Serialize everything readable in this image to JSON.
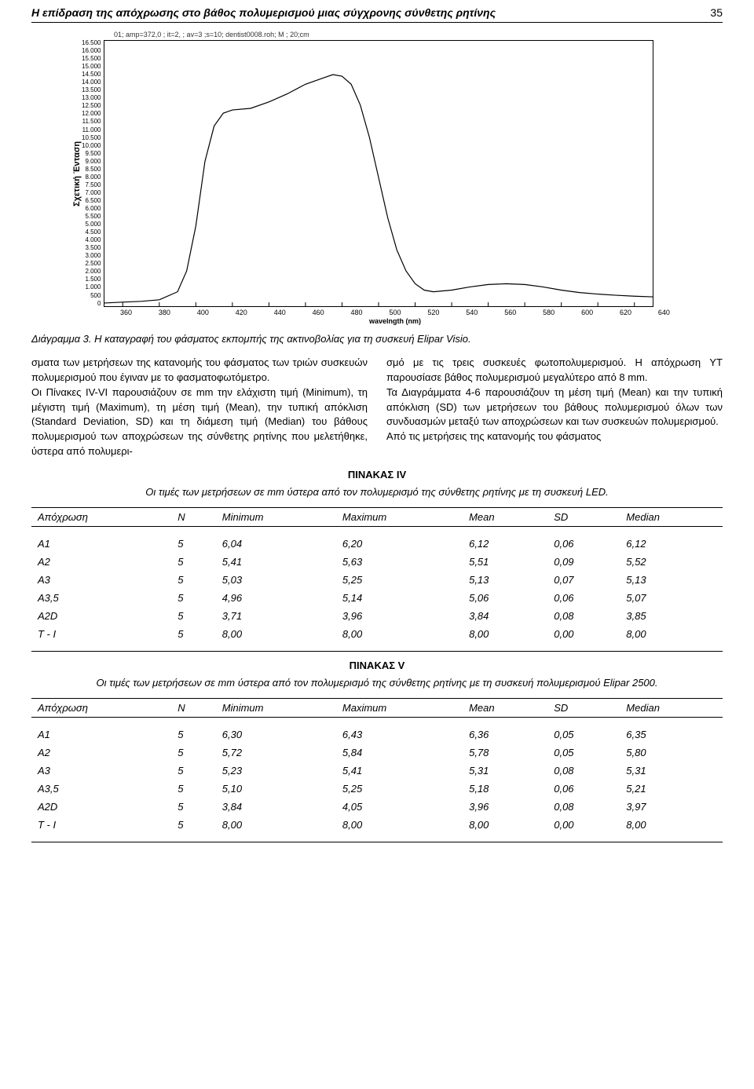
{
  "header": {
    "title": "Η επίδραση της απόχρωσης στο βάθος πολυμερισμού μιας σύγχρονης σύνθετης ρητίνης",
    "page_number": "35"
  },
  "chart": {
    "type": "line",
    "meta": "01; amp=372,0 ; it=2, ; av=3 ;s=10; dentist0008.roh; M ; 20;cm",
    "y_label": "Σχετική Ένταση",
    "x_label": "wavelngth (nm)",
    "y_ticks": [
      "16.500",
      "16.000",
      "15.500",
      "15.000",
      "14.500",
      "14.000",
      "13.500",
      "13.000",
      "12.500",
      "12.000",
      "11.500",
      "11.000",
      "10.500",
      "10.000",
      "9.500",
      "9.000",
      "8.500",
      "8.000",
      "7.500",
      "7.000",
      "6.500",
      "6.000",
      "5.500",
      "5.000",
      "4.500",
      "4.000",
      "3.500",
      "3.000",
      "2.500",
      "2.000",
      "1.500",
      "1.000",
      "500",
      "0"
    ],
    "x_ticks": [
      "360",
      "380",
      "400",
      "420",
      "440",
      "460",
      "480",
      "500",
      "520",
      "540",
      "560",
      "580",
      "600",
      "620",
      "640"
    ],
    "xlim": [
      350,
      650
    ],
    "ylim": [
      0,
      16500
    ],
    "background_color": "#ffffff",
    "line_color": "#000000",
    "border_color": "#000000",
    "line_width": 1.2,
    "series": [
      {
        "x": 350,
        "y": 200
      },
      {
        "x": 360,
        "y": 250
      },
      {
        "x": 370,
        "y": 300
      },
      {
        "x": 380,
        "y": 400
      },
      {
        "x": 390,
        "y": 900
      },
      {
        "x": 395,
        "y": 2200
      },
      {
        "x": 400,
        "y": 5000
      },
      {
        "x": 405,
        "y": 9000
      },
      {
        "x": 410,
        "y": 11200
      },
      {
        "x": 415,
        "y": 12000
      },
      {
        "x": 420,
        "y": 12200
      },
      {
        "x": 430,
        "y": 12300
      },
      {
        "x": 440,
        "y": 12700
      },
      {
        "x": 450,
        "y": 13200
      },
      {
        "x": 460,
        "y": 13800
      },
      {
        "x": 470,
        "y": 14200
      },
      {
        "x": 475,
        "y": 14400
      },
      {
        "x": 480,
        "y": 14300
      },
      {
        "x": 485,
        "y": 13800
      },
      {
        "x": 490,
        "y": 12500
      },
      {
        "x": 495,
        "y": 10500
      },
      {
        "x": 500,
        "y": 8000
      },
      {
        "x": 505,
        "y": 5500
      },
      {
        "x": 510,
        "y": 3500
      },
      {
        "x": 515,
        "y": 2200
      },
      {
        "x": 520,
        "y": 1400
      },
      {
        "x": 525,
        "y": 1000
      },
      {
        "x": 530,
        "y": 900
      },
      {
        "x": 540,
        "y": 1000
      },
      {
        "x": 550,
        "y": 1200
      },
      {
        "x": 560,
        "y": 1350
      },
      {
        "x": 570,
        "y": 1400
      },
      {
        "x": 580,
        "y": 1350
      },
      {
        "x": 590,
        "y": 1200
      },
      {
        "x": 600,
        "y": 1000
      },
      {
        "x": 610,
        "y": 850
      },
      {
        "x": 620,
        "y": 750
      },
      {
        "x": 630,
        "y": 680
      },
      {
        "x": 640,
        "y": 620
      },
      {
        "x": 650,
        "y": 580
      }
    ]
  },
  "diagram_caption": "Διάγραμμα 3. Η καταγραφή του φάσματος εκπομπής της ακτινοβολίας για τη συσκευή Elipar Visio.",
  "body": {
    "col1_p1": "σματα των μετρήσεων της κατανομής του φάσματος των τριών συσκευών πολυμερισμού που έγιναν με το φασματοφωτόμετρο.",
    "col1_p2": "Οι Πίνακες IV-VI παρουσιάζουν σε mm την ελάχιστη τιμή (Minimum), τη μέγιστη τιμή (Maximum), τη μέση τιμή (Mean), την τυπική απόκλιση (Standard Deviation, SD) και τη διάμεση τιμή (Median) του βάθους πολυμερισμού των αποχρώσεων της σύνθετης ρητίνης που μελετήθηκε, ύστερα από πολυμερι-",
    "col2_p1": "σμό με τις τρεις συσκευές φωτοπολυμερισμού. Η απόχρωση YT παρουσίασε βάθος πολυμερισμού μεγαλύτερο από 8 mm.",
    "col2_p2": "Τα Διαγράμματα 4-6 παρουσιάζουν τη μέση τιμή (Mean) και την τυπική απόκλιση (SD) των μετρήσεων του βάθους πολυμερισμού όλων των συνδυασμών μεταξύ των αποχρώσεων και των συσκευών πολυμερισμού.",
    "col2_p3": "Από τις μετρήσεις της κατανομής του φάσματος"
  },
  "table4": {
    "label": "ΠΙΝΑΚΑΣ IV",
    "caption": "Οι τιμές των μετρήσεων σε mm ύστερα από τον πολυμερισμό της σύνθετης ρητίνης με τη συσκευή LED.",
    "columns": [
      "Απόχρωση",
      "N",
      "Minimum",
      "Maximum",
      "Mean",
      "SD",
      "Median"
    ],
    "rows": [
      [
        "A1",
        "5",
        "6,04",
        "6,20",
        "6,12",
        "0,06",
        "6,12"
      ],
      [
        "A2",
        "5",
        "5,41",
        "5,63",
        "5,51",
        "0,09",
        "5,52"
      ],
      [
        "A3",
        "5",
        "5,03",
        "5,25",
        "5,13",
        "0,07",
        "5,13"
      ],
      [
        "A3,5",
        "5",
        "4,96",
        "5,14",
        "5,06",
        "0,06",
        "5,07"
      ],
      [
        "A2D",
        "5",
        "3,71",
        "3,96",
        "3,84",
        "0,08",
        "3,85"
      ],
      [
        "T - I",
        "5",
        "8,00",
        "8,00",
        "8,00",
        "0,00",
        "8,00"
      ]
    ]
  },
  "table5": {
    "label": "ΠΙΝΑΚΑΣ V",
    "caption": "Οι τιμές  των μετρήσεων σε mm ύστερα από τον πολυμερισμό της σύνθετης ρητίνης με τη συσκευή πολυμερισμού Elipar 2500.",
    "columns": [
      "Απόχρωση",
      "N",
      "Minimum",
      "Maximum",
      "Mean",
      "SD",
      "Median"
    ],
    "rows": [
      [
        "A1",
        "5",
        "6,30",
        "6,43",
        "6,36",
        "0,05",
        "6,35"
      ],
      [
        "A2",
        "5",
        "5,72",
        "5,84",
        "5,78",
        "0,05",
        "5,80"
      ],
      [
        "A3",
        "5",
        "5,23",
        "5,41",
        "5,31",
        "0,08",
        "5,31"
      ],
      [
        "A3,5",
        "5",
        "5,10",
        "5,25",
        "5,18",
        "0,06",
        "5,21"
      ],
      [
        "A2D",
        "5",
        "3,84",
        "4,05",
        "3,96",
        "0,08",
        "3,97"
      ],
      [
        "T - I",
        "5",
        "8,00",
        "8,00",
        "8,00",
        "0,00",
        "8,00"
      ]
    ]
  }
}
